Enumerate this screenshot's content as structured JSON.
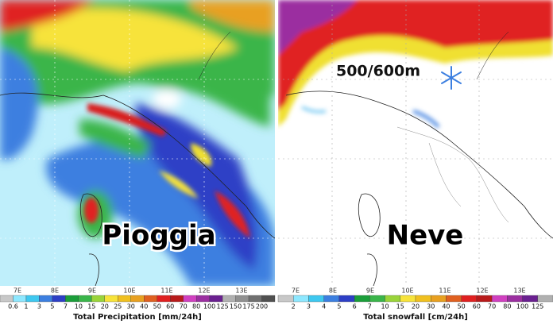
{
  "left": {
    "label": "Pioggia",
    "longitudes": [
      "7E",
      "8E",
      "9E",
      "10E",
      "11E",
      "12E",
      "13E"
    ],
    "colorbar": {
      "labels": [
        "0.6",
        "1",
        "3",
        "5",
        "7",
        "10",
        "15",
        "20",
        "25",
        "30",
        "40",
        "50",
        "60",
        "70",
        "80",
        "100",
        "125",
        "150",
        "175",
        "200"
      ],
      "title": "Total Precipitation [mm/24h]"
    }
  },
  "right": {
    "label": "Neve",
    "level": "500/600m",
    "longitudes": [
      "7E",
      "8E",
      "9E",
      "10E",
      "11E",
      "12E",
      "13E"
    ],
    "colorbar": {
      "labels": [
        "2",
        "3",
        "4",
        "5",
        "6",
        "7",
        "10",
        "15",
        "20",
        "30",
        "40",
        "50",
        "60",
        "70",
        "80",
        "100",
        "125"
      ],
      "title": "Total snowfall [cm/24h]"
    }
  }
}
